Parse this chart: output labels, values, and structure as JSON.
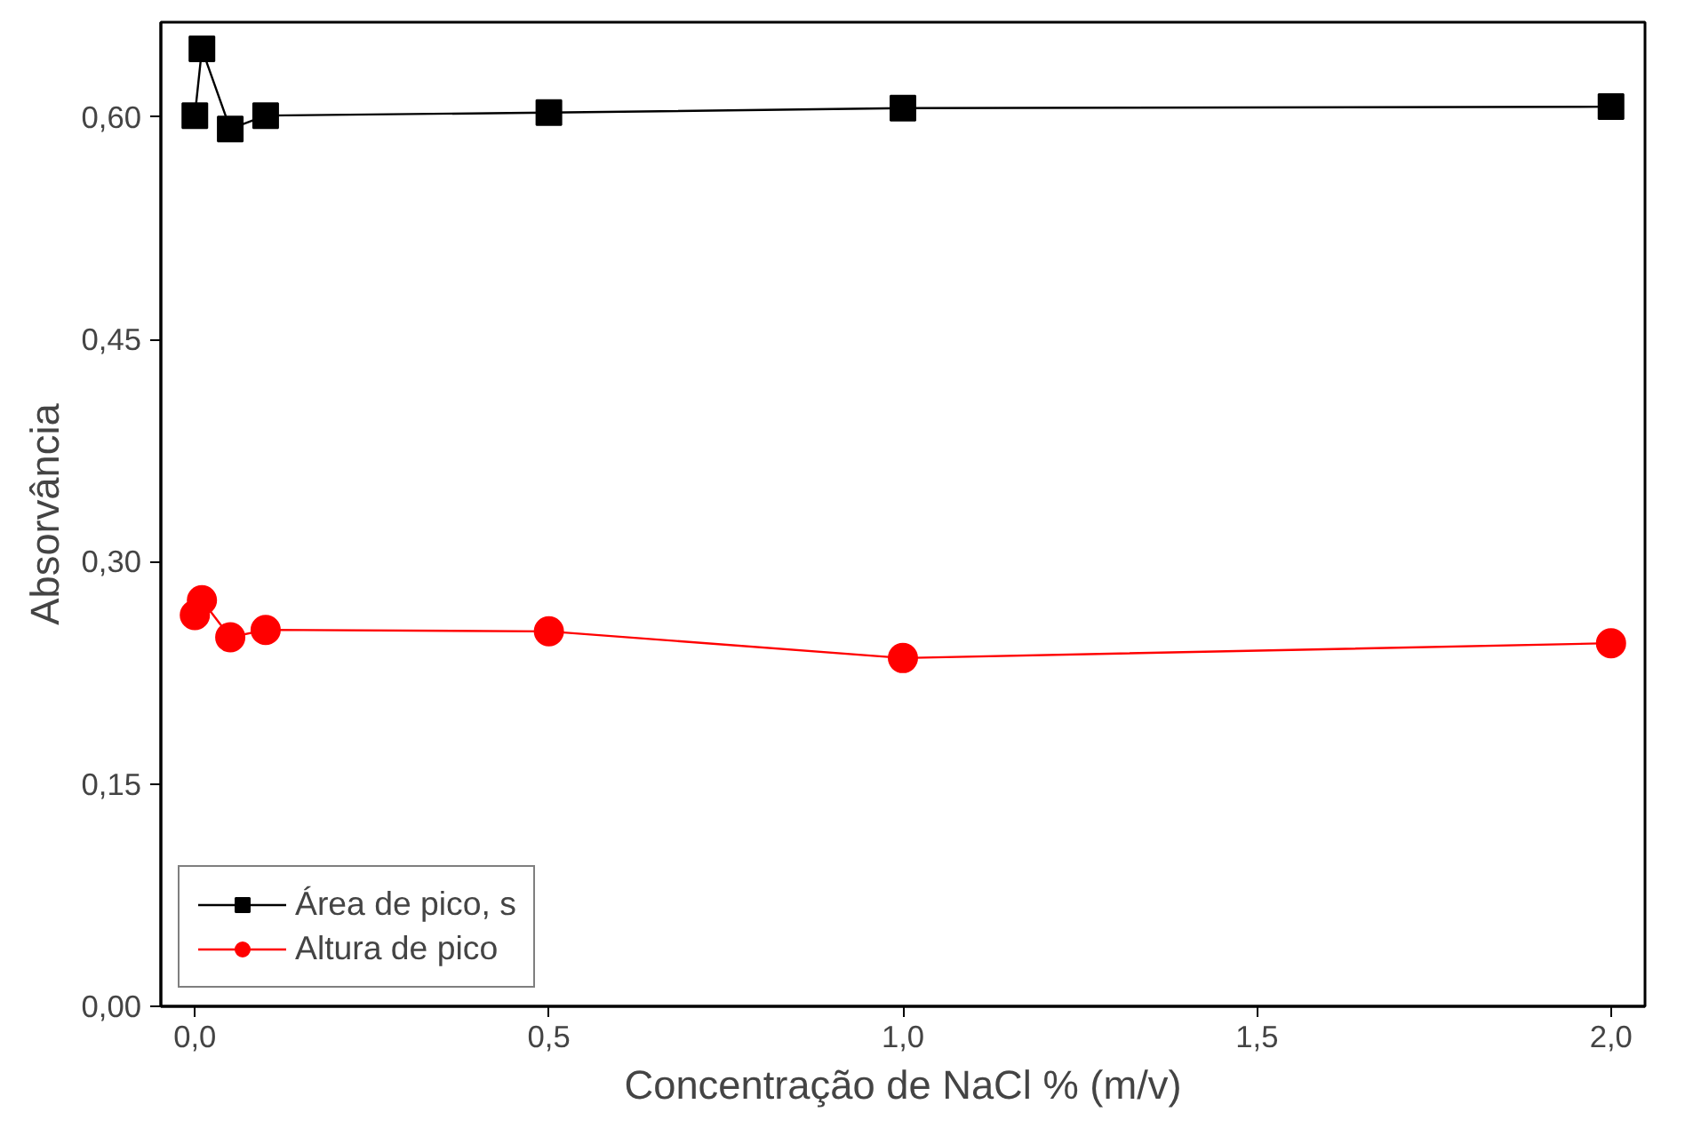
{
  "chart_data": {
    "type": "line",
    "xlabel": "Concentração de NaCl % (m/v)",
    "ylabel": "Absorvância",
    "xlim": [
      -0.048,
      2.048
    ],
    "ylim": [
      0,
      0.664
    ],
    "xticks": [
      {
        "value": 0,
        "label": "0,0"
      },
      {
        "value": 0.5,
        "label": "0,5"
      },
      {
        "value": 1,
        "label": "1,0"
      },
      {
        "value": 1.5,
        "label": "1,5"
      },
      {
        "value": 2,
        "label": "2,0"
      }
    ],
    "yticks": [
      {
        "value": 0,
        "label": "0,00"
      },
      {
        "value": 0.15,
        "label": "0,15"
      },
      {
        "value": 0.3,
        "label": "0,30"
      },
      {
        "value": 0.45,
        "label": "0,45"
      },
      {
        "value": 0.6,
        "label": "0,60"
      }
    ],
    "x": [
      0,
      0.01,
      0.05,
      0.1,
      0.5,
      1.0,
      2.0
    ],
    "series": [
      {
        "name": "Área de pico, s",
        "color": "#000000",
        "marker": "square",
        "values": [
          0.601,
          0.646,
          0.592,
          0.601,
          0.603,
          0.606,
          0.607
        ]
      },
      {
        "name": "Altura de pico",
        "color": "#ff0000",
        "marker": "circle",
        "values": [
          0.264,
          0.274,
          0.249,
          0.254,
          0.253,
          0.235,
          0.245
        ]
      }
    ],
    "legend": "bottom left",
    "grid": false
  }
}
